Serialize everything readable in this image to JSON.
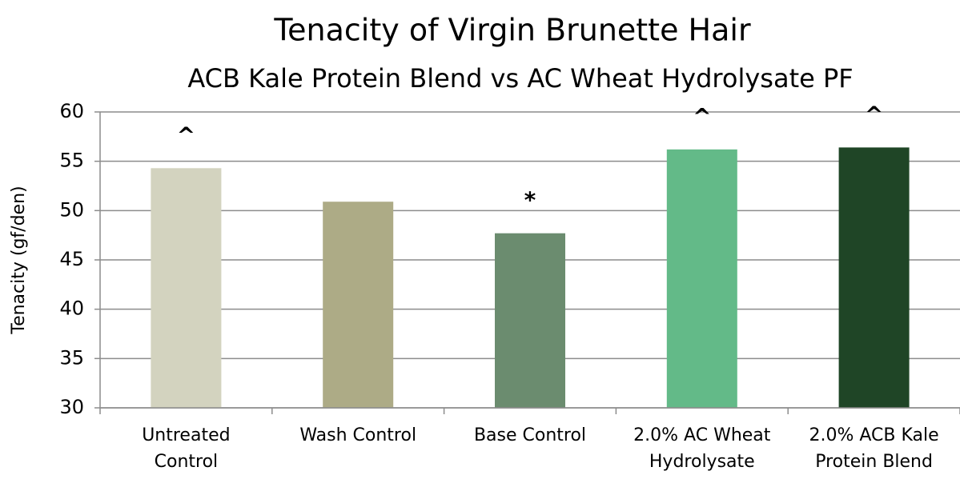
{
  "chart_data": {
    "type": "bar",
    "title": "Tenacity of Virgin Brunette Hair",
    "subtitle": "ACB Kale Protein Blend vs AC Wheat Hydrolysate PF",
    "y_label": "Tenacity (gf/den)",
    "categories": [
      "Untreated Control",
      "Wash Control",
      "Base Control",
      "2.0% AC Wheat Hydrolysate",
      "2.0% ACB Kale Protein Blend"
    ],
    "values": [
      54.3,
      50.9,
      47.7,
      56.2,
      56.4
    ],
    "colors": [
      "#d3d3bf",
      "#adab86",
      "#6b8c6f",
      "#63ba88",
      "#1f4526"
    ],
    "annotations": [
      "^",
      null,
      "*",
      "^",
      "^"
    ],
    "ylim": [
      30,
      60
    ],
    "yticks": [
      30,
      35,
      40,
      45,
      50,
      55,
      60
    ],
    "grid": true
  }
}
